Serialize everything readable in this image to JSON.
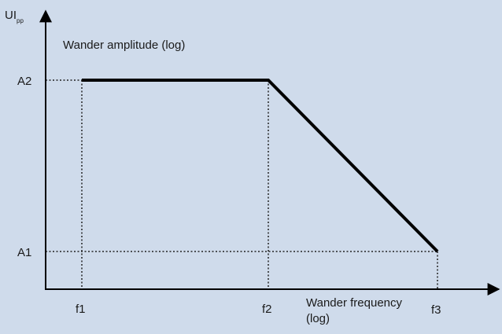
{
  "y_axis": {
    "label": "UI",
    "label_subscript": "pp",
    "title": "Wander amplitude (log)"
  },
  "x_axis": {
    "title": [
      "Wander frequency",
      "(log)"
    ]
  },
  "amplitude_levels": [
    "A2",
    "A1"
  ],
  "frequency_levels": [
    "f1",
    "f2",
    "f3"
  ]
}
